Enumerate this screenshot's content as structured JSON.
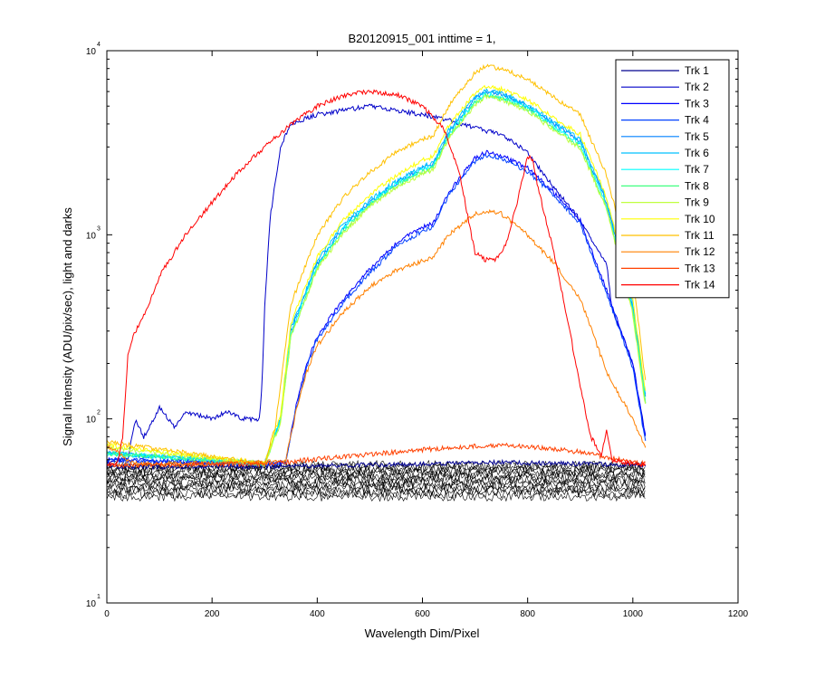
{
  "chart_data": {
    "type": "line",
    "title": "B20120915_001 inttime = 1,",
    "xlabel": "Wavelength Dim/Pixel",
    "ylabel": "Signal Intensity (ADU/pix/sec), light and darks",
    "xlim": [
      0,
      1200
    ],
    "ylim": [
      10,
      10000
    ],
    "y_scale": "log",
    "x_ticks": [
      "0",
      "200",
      "400",
      "600",
      "800",
      "1000",
      "1200"
    ],
    "y_ticks": [
      {
        "base": "10",
        "exp": "1"
      },
      {
        "base": "10",
        "exp": "2"
      },
      {
        "base": "10",
        "exp": "3"
      },
      {
        "base": "10",
        "exp": "4"
      }
    ],
    "grid": false,
    "legend_position": "top-right",
    "darks_color": "#000000",
    "darks_range": [
      38,
      56
    ],
    "series": [
      {
        "name": "Trk 1",
        "color": "#00008f",
        "points": [
          [
            0,
            55
          ],
          [
            50,
            55
          ],
          [
            300,
            55
          ],
          [
            600,
            57
          ],
          [
            750,
            58
          ],
          [
            900,
            57
          ],
          [
            1024,
            56
          ]
        ]
      },
      {
        "name": "Trk 2",
        "color": "#0000c8",
        "points": [
          [
            0,
            56
          ],
          [
            20,
            60
          ],
          [
            40,
            60
          ],
          [
            45,
            75
          ],
          [
            55,
            100
          ],
          [
            70,
            80
          ],
          [
            80,
            90
          ],
          [
            100,
            115
          ],
          [
            130,
            90
          ],
          [
            150,
            110
          ],
          [
            170,
            105
          ],
          [
            200,
            100
          ],
          [
            230,
            110
          ],
          [
            260,
            100
          ],
          [
            290,
            100
          ],
          [
            295,
            150
          ],
          [
            300,
            400
          ],
          [
            310,
            1200
          ],
          [
            330,
            3000
          ],
          [
            350,
            4000
          ],
          [
            400,
            4500
          ],
          [
            500,
            5000
          ],
          [
            600,
            4500
          ],
          [
            650,
            4200
          ],
          [
            700,
            3800
          ],
          [
            750,
            3500
          ],
          [
            800,
            2800
          ],
          [
            850,
            1800
          ],
          [
            900,
            1200
          ],
          [
            950,
            700
          ],
          [
            960,
            400
          ],
          [
            1000,
            200
          ],
          [
            1024,
            80
          ]
        ]
      },
      {
        "name": "Trk 3",
        "color": "#0000ff",
        "points": [
          [
            0,
            60
          ],
          [
            300,
            57
          ],
          [
            340,
            58
          ],
          [
            360,
            120
          ],
          [
            380,
            200
          ],
          [
            400,
            280
          ],
          [
            450,
            450
          ],
          [
            500,
            650
          ],
          [
            550,
            900
          ],
          [
            600,
            1100
          ],
          [
            620,
            1150
          ],
          [
            650,
            1700
          ],
          [
            700,
            2600
          ],
          [
            720,
            2800
          ],
          [
            750,
            2700
          ],
          [
            800,
            2300
          ],
          [
            850,
            1700
          ],
          [
            900,
            1200
          ],
          [
            950,
            500
          ],
          [
            1000,
            200
          ],
          [
            1024,
            80
          ]
        ]
      },
      {
        "name": "Trk 4",
        "color": "#0040ff",
        "points": [
          [
            0,
            60
          ],
          [
            300,
            57
          ],
          [
            340,
            58
          ],
          [
            360,
            115
          ],
          [
            380,
            190
          ],
          [
            400,
            270
          ],
          [
            450,
            430
          ],
          [
            500,
            620
          ],
          [
            550,
            860
          ],
          [
            600,
            1050
          ],
          [
            620,
            1100
          ],
          [
            650,
            1650
          ],
          [
            700,
            2500
          ],
          [
            720,
            2700
          ],
          [
            750,
            2600
          ],
          [
            800,
            2200
          ],
          [
            850,
            1650
          ],
          [
            900,
            1150
          ],
          [
            950,
            480
          ],
          [
            1000,
            190
          ],
          [
            1024,
            75
          ]
        ]
      },
      {
        "name": "Trk 5",
        "color": "#0080ff",
        "points": [
          [
            0,
            65
          ],
          [
            300,
            57
          ],
          [
            330,
            100
          ],
          [
            350,
            300
          ],
          [
            400,
            700
          ],
          [
            450,
            1100
          ],
          [
            500,
            1500
          ],
          [
            550,
            1900
          ],
          [
            600,
            2300
          ],
          [
            620,
            2400
          ],
          [
            650,
            3600
          ],
          [
            700,
            5500
          ],
          [
            720,
            6000
          ],
          [
            750,
            5800
          ],
          [
            800,
            5000
          ],
          [
            850,
            4000
          ],
          [
            900,
            3200
          ],
          [
            950,
            1500
          ],
          [
            1000,
            400
          ],
          [
            1024,
            130
          ]
        ]
      },
      {
        "name": "Trk 6",
        "color": "#00c0ff",
        "points": [
          [
            0,
            65
          ],
          [
            300,
            57
          ],
          [
            330,
            100
          ],
          [
            350,
            310
          ],
          [
            400,
            720
          ],
          [
            450,
            1150
          ],
          [
            500,
            1550
          ],
          [
            550,
            1950
          ],
          [
            600,
            2350
          ],
          [
            620,
            2450
          ],
          [
            650,
            3700
          ],
          [
            700,
            5600
          ],
          [
            720,
            6100
          ],
          [
            750,
            5900
          ],
          [
            800,
            5100
          ],
          [
            850,
            4100
          ],
          [
            900,
            3300
          ],
          [
            950,
            1550
          ],
          [
            1000,
            420
          ],
          [
            1024,
            135
          ]
        ]
      },
      {
        "name": "Trk 7",
        "color": "#00ffff",
        "points": [
          [
            0,
            65
          ],
          [
            300,
            57
          ],
          [
            330,
            100
          ],
          [
            350,
            290
          ],
          [
            400,
            680
          ],
          [
            450,
            1080
          ],
          [
            500,
            1480
          ],
          [
            550,
            1880
          ],
          [
            600,
            2250
          ],
          [
            620,
            2350
          ],
          [
            650,
            3500
          ],
          [
            700,
            5300
          ],
          [
            720,
            5800
          ],
          [
            750,
            5600
          ],
          [
            800,
            4900
          ],
          [
            850,
            3900
          ],
          [
            900,
            3100
          ],
          [
            950,
            1450
          ],
          [
            1000,
            390
          ],
          [
            1024,
            125
          ]
        ]
      },
      {
        "name": "Trk 8",
        "color": "#40ff80",
        "points": [
          [
            0,
            65
          ],
          [
            300,
            57
          ],
          [
            330,
            95
          ],
          [
            350,
            280
          ],
          [
            400,
            660
          ],
          [
            450,
            1050
          ],
          [
            500,
            1450
          ],
          [
            550,
            1850
          ],
          [
            600,
            2200
          ],
          [
            620,
            2300
          ],
          [
            650,
            3400
          ],
          [
            700,
            5200
          ],
          [
            720,
            5700
          ],
          [
            750,
            5500
          ],
          [
            800,
            4800
          ],
          [
            850,
            3800
          ],
          [
            900,
            3000
          ],
          [
            950,
            1400
          ],
          [
            1000,
            380
          ],
          [
            1024,
            120
          ]
        ]
      },
      {
        "name": "Trk 9",
        "color": "#c0ff40",
        "points": [
          [
            0,
            70
          ],
          [
            300,
            57
          ],
          [
            330,
            95
          ],
          [
            350,
            280
          ],
          [
            400,
            650
          ],
          [
            450,
            1030
          ],
          [
            500,
            1420
          ],
          [
            550,
            1800
          ],
          [
            600,
            2150
          ],
          [
            620,
            2250
          ],
          [
            650,
            3350
          ],
          [
            700,
            5100
          ],
          [
            720,
            5600
          ],
          [
            750,
            5400
          ],
          [
            800,
            4700
          ],
          [
            850,
            3700
          ],
          [
            900,
            2950
          ],
          [
            950,
            1380
          ],
          [
            1000,
            370
          ],
          [
            1024,
            118
          ]
        ]
      },
      {
        "name": "Trk 10",
        "color": "#ffff00",
        "points": [
          [
            0,
            72
          ],
          [
            300,
            57
          ],
          [
            330,
            105
          ],
          [
            350,
            330
          ],
          [
            400,
            760
          ],
          [
            450,
            1200
          ],
          [
            500,
            1650
          ],
          [
            550,
            2100
          ],
          [
            600,
            2550
          ],
          [
            620,
            2650
          ],
          [
            650,
            3900
          ],
          [
            700,
            5900
          ],
          [
            720,
            6400
          ],
          [
            750,
            6200
          ],
          [
            800,
            5400
          ],
          [
            850,
            4300
          ],
          [
            900,
            3500
          ],
          [
            950,
            1600
          ],
          [
            1000,
            440
          ],
          [
            1024,
            140
          ]
        ]
      },
      {
        "name": "Trk 11",
        "color": "#ffc000",
        "points": [
          [
            0,
            75
          ],
          [
            300,
            57
          ],
          [
            320,
            90
          ],
          [
            340,
            250
          ],
          [
            350,
            420
          ],
          [
            400,
            1000
          ],
          [
            450,
            1600
          ],
          [
            500,
            2200
          ],
          [
            550,
            2800
          ],
          [
            600,
            3300
          ],
          [
            620,
            3400
          ],
          [
            650,
            5000
          ],
          [
            700,
            7600
          ],
          [
            720,
            8200
          ],
          [
            750,
            8000
          ],
          [
            800,
            7000
          ],
          [
            850,
            5600
          ],
          [
            900,
            4500
          ],
          [
            950,
            2100
          ],
          [
            1000,
            600
          ],
          [
            1024,
            160
          ]
        ]
      },
      {
        "name": "Trk 12",
        "color": "#ff8000",
        "points": [
          [
            0,
            72
          ],
          [
            50,
            57
          ],
          [
            300,
            58
          ],
          [
            340,
            60
          ],
          [
            360,
            110
          ],
          [
            380,
            180
          ],
          [
            400,
            250
          ],
          [
            450,
            380
          ],
          [
            500,
            520
          ],
          [
            550,
            640
          ],
          [
            600,
            720
          ],
          [
            620,
            750
          ],
          [
            650,
            1000
          ],
          [
            700,
            1300
          ],
          [
            720,
            1350
          ],
          [
            750,
            1300
          ],
          [
            800,
            1000
          ],
          [
            850,
            700
          ],
          [
            900,
            450
          ],
          [
            950,
            180
          ],
          [
            1000,
            100
          ],
          [
            1024,
            70
          ]
        ]
      },
      {
        "name": "Trk 13",
        "color": "#ff4000",
        "points": [
          [
            0,
            56
          ],
          [
            300,
            57
          ],
          [
            600,
            68
          ],
          [
            700,
            71
          ],
          [
            750,
            72
          ],
          [
            800,
            71
          ],
          [
            900,
            66
          ],
          [
            1000,
            58
          ],
          [
            1024,
            57
          ]
        ]
      },
      {
        "name": "Trk 14",
        "color": "#ff0000",
        "points": [
          [
            0,
            57
          ],
          [
            20,
            57
          ],
          [
            30,
            80
          ],
          [
            40,
            220
          ],
          [
            50,
            280
          ],
          [
            80,
            420
          ],
          [
            100,
            600
          ],
          [
            150,
            1000
          ],
          [
            200,
            1500
          ],
          [
            250,
            2200
          ],
          [
            300,
            3000
          ],
          [
            350,
            4000
          ],
          [
            400,
            5000
          ],
          [
            450,
            5700
          ],
          [
            500,
            6000
          ],
          [
            550,
            5800
          ],
          [
            600,
            5000
          ],
          [
            640,
            3800
          ],
          [
            670,
            2200
          ],
          [
            690,
            1100
          ],
          [
            700,
            800
          ],
          [
            720,
            730
          ],
          [
            740,
            740
          ],
          [
            760,
            900
          ],
          [
            780,
            1500
          ],
          [
            800,
            2700
          ],
          [
            810,
            2500
          ],
          [
            820,
            1800
          ],
          [
            850,
            800
          ],
          [
            880,
            300
          ],
          [
            900,
            150
          ],
          [
            920,
            80
          ],
          [
            940,
            64
          ],
          [
            950,
            85
          ],
          [
            960,
            60
          ],
          [
            1000,
            57
          ],
          [
            1024,
            56
          ]
        ]
      }
    ]
  }
}
